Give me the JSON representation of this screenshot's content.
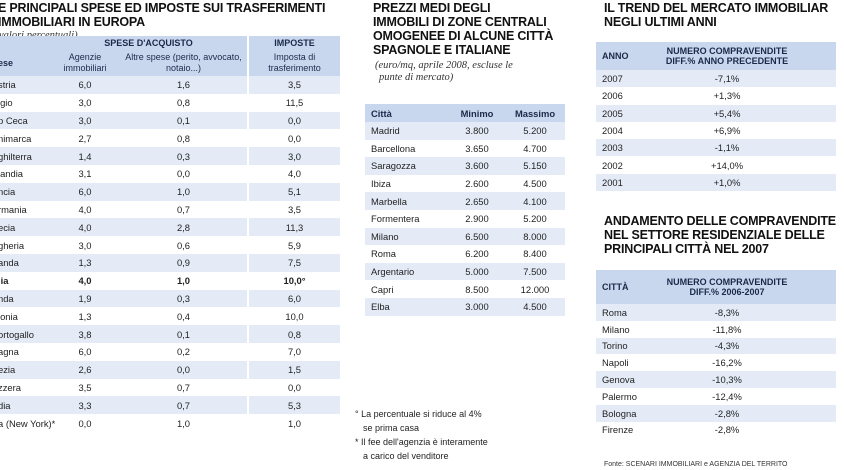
{
  "panel1": {
    "title_lines": [
      "E PRINCIPALI SPESE ED IMPOSTE SUI TRASFERIMENTI",
      "IMMOBILIARI IN EUROPA"
    ],
    "subtitle": "valori percentuali)",
    "headers": {
      "group_purchase": "SPESE D'ACQUISTO",
      "group_tax": "IMPOSTE",
      "country": "ese",
      "agency": "Agenzie immobiliari",
      "other": "Altre spese (perito, avvocato, notaio...)",
      "transfer_tax": "Imposta di trasferimento"
    },
    "rows": [
      {
        "country": "stria",
        "agency": "6,0",
        "other": "1,6",
        "tax": "3,5"
      },
      {
        "country": "lgio",
        "agency": "3,0",
        "other": "0,8",
        "tax": "11,5"
      },
      {
        "country": "p Ceca",
        "agency": "3,0",
        "other": "0,1",
        "tax": "0,0"
      },
      {
        "country": "nimarca",
        "agency": "2,7",
        "other": "0,8",
        "tax": "0,0"
      },
      {
        "country": "ghilterra",
        "agency": "1,4",
        "other": "0,3",
        "tax": "3,0"
      },
      {
        "country": "landia",
        "agency": "3,1",
        "other": "0,0",
        "tax": "4,0"
      },
      {
        "country": "ncia",
        "agency": "6,0",
        "other": "1,0",
        "tax": "5,1"
      },
      {
        "country": "rmania",
        "agency": "4,0",
        "other": "0,7",
        "tax": "3,5"
      },
      {
        "country": "ecia",
        "agency": "4,0",
        "other": "2,8",
        "tax": "11,3"
      },
      {
        "country": "gheria",
        "agency": "3,0",
        "other": "0,6",
        "tax": "5,9"
      },
      {
        "country": "anda",
        "agency": "1,3",
        "other": "0,9",
        "tax": "7,5"
      },
      {
        "country": "lia",
        "agency": "4,0",
        "other": "1,0",
        "tax": "10,0°"
      },
      {
        "country": "nda",
        "agency": "1,9",
        "other": "0,3",
        "tax": "6,0"
      },
      {
        "country": "lonia",
        "agency": "1,3",
        "other": "0,4",
        "tax": "10,0"
      },
      {
        "country": "ortogallo",
        "agency": "3,8",
        "other": "0,1",
        "tax": "0,8"
      },
      {
        "country": "agna",
        "agency": "6,0",
        "other": "0,2",
        "tax": "7,0"
      },
      {
        "country": "ezia",
        "agency": "2,6",
        "other": "0,0",
        "tax": "1,5"
      },
      {
        "country": "zzera",
        "agency": "3,5",
        "other": "0,7",
        "tax": "0,0"
      },
      {
        "country": "dia",
        "agency": "3,3",
        "other": "0,7",
        "tax": "5,3"
      },
      {
        "country": "a (New York)*",
        "agency": "0,0",
        "other": "1,0",
        "tax": "1,0"
      }
    ]
  },
  "panel2": {
    "title_lines": [
      "PREZZI MEDI DEGLI",
      "IMMOBILI DI ZONE CENTRALI",
      "OMOGENEE DI ALCUNE CITTÀ",
      "SPAGNOLE E ITALIANE"
    ],
    "subtitle_lines": [
      "(euro/mq, aprile 2008, escluse le",
      "punte di mercato)"
    ],
    "headers": {
      "city": "Città",
      "min": "Minimo",
      "max": "Massimo"
    },
    "rows": [
      {
        "city": "Madrid",
        "min": "3.800",
        "max": "5.200"
      },
      {
        "city": "Barcellona",
        "min": "3.650",
        "max": "4.700"
      },
      {
        "city": "Saragozza",
        "min": "3.600",
        "max": "5.150"
      },
      {
        "city": "Ibiza",
        "min": "2.600",
        "max": "4.500"
      },
      {
        "city": "Marbella",
        "min": "2.650",
        "max": "4.100"
      },
      {
        "city": "Formentera",
        "min": "2.900",
        "max": "5.200"
      },
      {
        "city": "Milano",
        "min": "6.500",
        "max": "8.000"
      },
      {
        "city": "Roma",
        "min": "6.200",
        "max": "8.400"
      },
      {
        "city": "Argentario",
        "min": "5.000",
        "max": "7.500"
      },
      {
        "city": "Capri",
        "min": "8.500",
        "max": "12.000"
      },
      {
        "city": "Elba",
        "min": "3.000",
        "max": "4.500"
      }
    ],
    "notes": [
      [
        "° La percentuale si riduce al 4%",
        "se prima casa"
      ],
      [
        "* Il fee dell'agenzia è interamente",
        "a carico del venditore"
      ]
    ]
  },
  "panel3": {
    "title_lines": [
      "IL TREND DEL MERCATO IMMOBILIAR",
      "NEGLI ULTIMI ANNI"
    ],
    "trend_headers": {
      "year": "ANNO",
      "change_lines": [
        "NUMERO COMPRAVENDITE",
        "DIFF.% ANNO PRECEDENTE"
      ]
    },
    "trend_rows": [
      {
        "year": "2007",
        "change": "-7,1%"
      },
      {
        "year": "2006",
        "change": "+1,3%"
      },
      {
        "year": "2005",
        "change": "+5,4%"
      },
      {
        "year": "2004",
        "change": "+6,9%"
      },
      {
        "year": "2003",
        "change": "-1,1%"
      },
      {
        "year": "2002",
        "change": "+14,0%"
      },
      {
        "year": "2001",
        "change": "+1,0%"
      }
    ],
    "cities_title_lines": [
      "ANDAMENTO DELLE COMPRAVENDITE",
      "NEL SETTORE RESIDENZIALE DELLE",
      "PRINCIPALI CITTÀ NEL 2007"
    ],
    "cities_headers": {
      "city": "CITTÀ",
      "change_lines": [
        "NUMERO COMPRAVENDITE",
        "DIFF.% 2006-2007"
      ]
    },
    "cities_rows": [
      {
        "city": "Roma",
        "change": "-8,3%"
      },
      {
        "city": "Milano",
        "change": "-11,8%"
      },
      {
        "city": "Torino",
        "change": "-4,3%"
      },
      {
        "city": "Napoli",
        "change": "-16,2%"
      },
      {
        "city": "Genova",
        "change": "-10,3%"
      },
      {
        "city": "Palermo",
        "change": "-12,4%"
      },
      {
        "city": "Bologna",
        "change": "-2,8%"
      },
      {
        "city": "Firenze",
        "change": "-2,8%"
      }
    ],
    "source": "Fonte: SCENARI IMMOBILIARI e AGENZIA DEL TERRITO"
  }
}
